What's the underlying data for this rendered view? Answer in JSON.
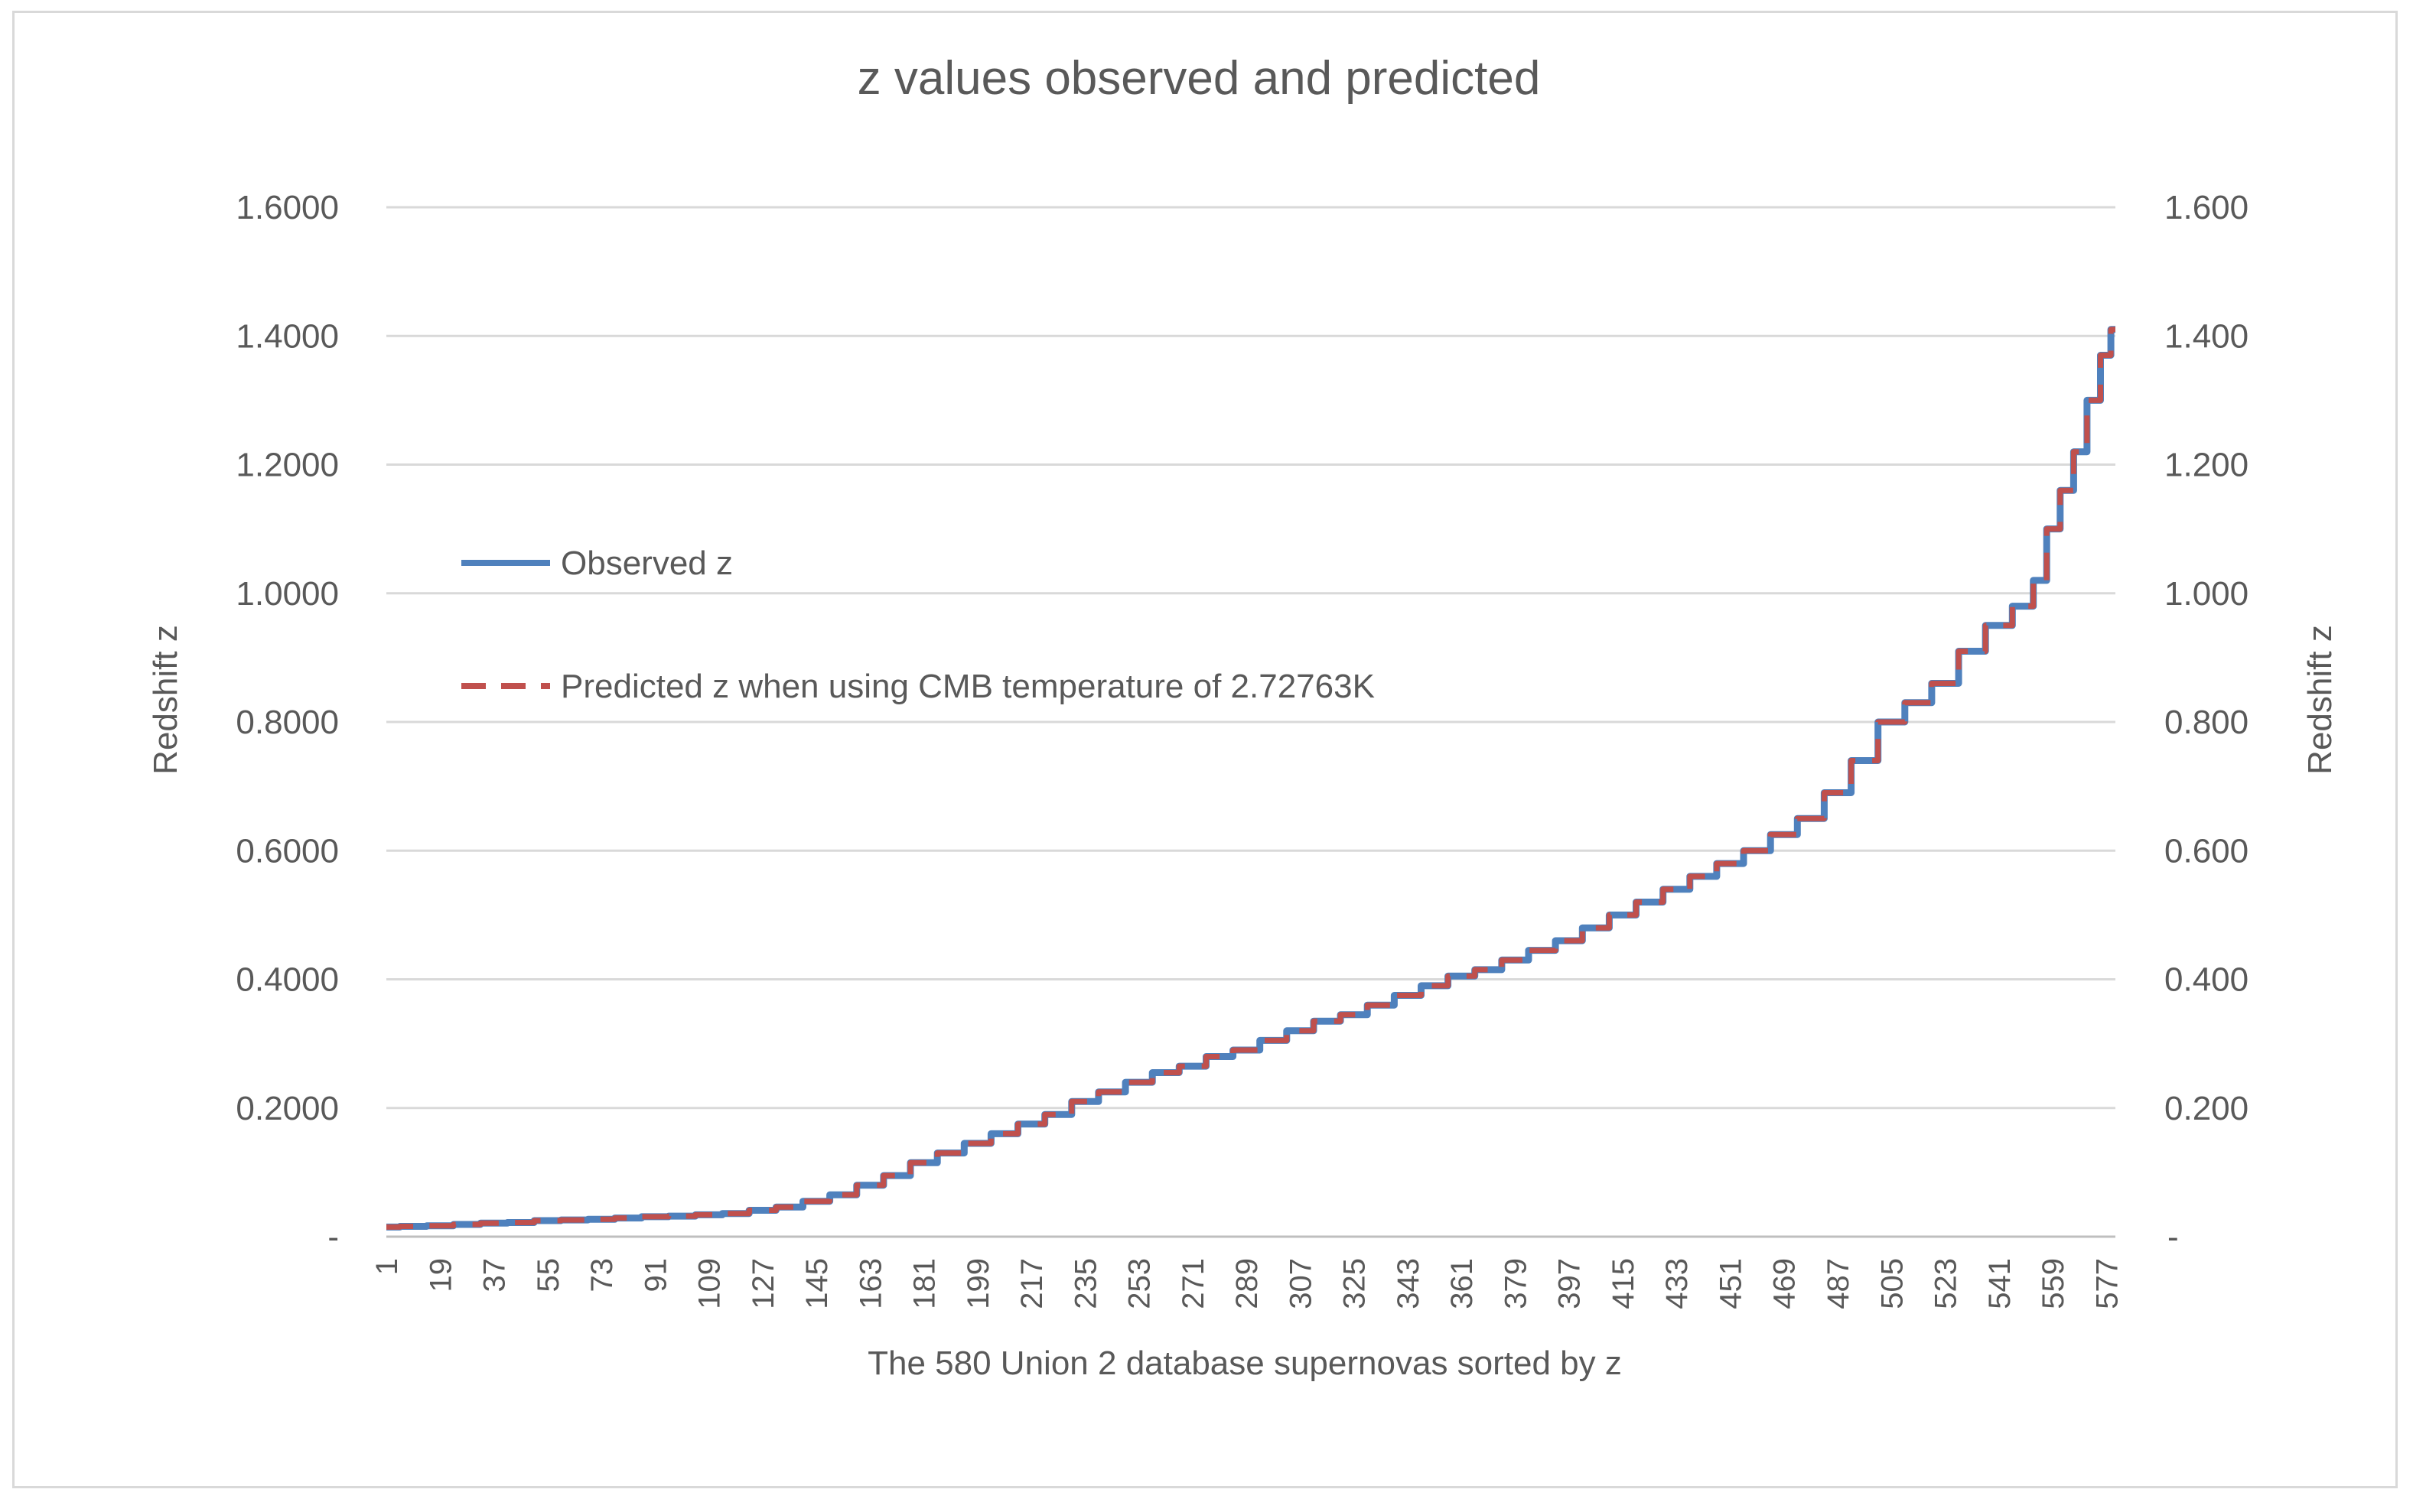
{
  "chart_data": {
    "type": "line",
    "title": "z values observed and  predicted",
    "xlabel": "The 580 Union 2 database supernovas sorted by z",
    "ylabel_left": "Redshift z",
    "ylabel_right": "Redshift z",
    "x_range": [
      1,
      580
    ],
    "ylim": [
      0,
      1.6
    ],
    "grid": "horizontal",
    "legend_position": "left",
    "y_ticks_left": [
      {
        "value": 0,
        "label": "-"
      },
      {
        "value": 0.2,
        "label": "0.2000"
      },
      {
        "value": 0.4,
        "label": "0.4000"
      },
      {
        "value": 0.6,
        "label": "0.6000"
      },
      {
        "value": 0.8,
        "label": "0.8000"
      },
      {
        "value": 1.0,
        "label": "1.0000"
      },
      {
        "value": 1.2,
        "label": "1.2000"
      },
      {
        "value": 1.4,
        "label": "1.4000"
      },
      {
        "value": 1.6,
        "label": "1.6000"
      }
    ],
    "y_ticks_right": [
      {
        "value": 0,
        "label": "-"
      },
      {
        "value": 0.2,
        "label": "0.200"
      },
      {
        "value": 0.4,
        "label": "0.400"
      },
      {
        "value": 0.6,
        "label": "0.600"
      },
      {
        "value": 0.8,
        "label": "0.800"
      },
      {
        "value": 1.0,
        "label": "1.000"
      },
      {
        "value": 1.2,
        "label": "1.200"
      },
      {
        "value": 1.4,
        "label": "1.400"
      },
      {
        "value": 1.6,
        "label": "1.600"
      }
    ],
    "x_tick_labels": [
      "1",
      "19",
      "37",
      "55",
      "73",
      "91",
      "109",
      "127",
      "145",
      "163",
      "181",
      "199",
      "217",
      "235",
      "253",
      "271",
      "289",
      "307",
      "325",
      "343",
      "361",
      "379",
      "397",
      "415",
      "433",
      "451",
      "469",
      "487",
      "505",
      "523",
      "541",
      "559",
      "577"
    ],
    "series": [
      {
        "name": "Observed z",
        "color": "#4f81bd",
        "style": "solid",
        "x": [
          1,
          10,
          19,
          28,
          37,
          46,
          55,
          64,
          73,
          82,
          91,
          100,
          109,
          118,
          127,
          136,
          145,
          154,
          163,
          172,
          181,
          190,
          199,
          208,
          217,
          226,
          235,
          244,
          253,
          262,
          271,
          280,
          289,
          298,
          307,
          316,
          325,
          334,
          343,
          352,
          361,
          370,
          379,
          388,
          397,
          406,
          415,
          424,
          433,
          442,
          451,
          460,
          469,
          478,
          487,
          496,
          505,
          514,
          523,
          532,
          541,
          550,
          555,
          559,
          564,
          568,
          573,
          577,
          580
        ],
        "values": [
          0.015,
          0.016,
          0.017,
          0.019,
          0.021,
          0.022,
          0.025,
          0.026,
          0.027,
          0.029,
          0.031,
          0.032,
          0.034,
          0.036,
          0.041,
          0.046,
          0.055,
          0.065,
          0.08,
          0.095,
          0.115,
          0.13,
          0.145,
          0.16,
          0.175,
          0.19,
          0.21,
          0.225,
          0.24,
          0.255,
          0.265,
          0.28,
          0.29,
          0.305,
          0.32,
          0.335,
          0.345,
          0.36,
          0.375,
          0.39,
          0.405,
          0.415,
          0.43,
          0.445,
          0.46,
          0.48,
          0.5,
          0.52,
          0.54,
          0.56,
          0.58,
          0.6,
          0.625,
          0.65,
          0.69,
          0.74,
          0.8,
          0.83,
          0.86,
          0.91,
          0.95,
          0.98,
          1.02,
          1.1,
          1.16,
          1.22,
          1.3,
          1.37,
          1.41
        ]
      },
      {
        "name": "Predicted z when using CMB temperature of 2.72763K",
        "color": "#c0504d",
        "style": "dashed",
        "x": [
          1,
          10,
          19,
          28,
          37,
          46,
          55,
          64,
          73,
          82,
          91,
          100,
          109,
          118,
          127,
          136,
          145,
          154,
          163,
          172,
          181,
          190,
          199,
          208,
          217,
          226,
          235,
          244,
          253,
          262,
          271,
          280,
          289,
          298,
          307,
          316,
          325,
          334,
          343,
          352,
          361,
          370,
          379,
          388,
          397,
          406,
          415,
          424,
          433,
          442,
          451,
          460,
          469,
          478,
          487,
          496,
          505,
          514,
          523,
          532,
          541,
          550,
          555,
          559,
          564,
          568,
          573,
          577,
          580
        ],
        "values": [
          0.015,
          0.016,
          0.017,
          0.019,
          0.021,
          0.022,
          0.025,
          0.026,
          0.027,
          0.029,
          0.031,
          0.032,
          0.034,
          0.036,
          0.041,
          0.046,
          0.055,
          0.065,
          0.08,
          0.095,
          0.115,
          0.13,
          0.145,
          0.16,
          0.175,
          0.19,
          0.21,
          0.225,
          0.24,
          0.255,
          0.265,
          0.28,
          0.29,
          0.305,
          0.32,
          0.335,
          0.345,
          0.36,
          0.375,
          0.39,
          0.405,
          0.415,
          0.43,
          0.445,
          0.46,
          0.48,
          0.5,
          0.52,
          0.54,
          0.56,
          0.58,
          0.6,
          0.625,
          0.65,
          0.69,
          0.74,
          0.8,
          0.83,
          0.86,
          0.91,
          0.95,
          0.98,
          1.02,
          1.1,
          1.16,
          1.22,
          1.3,
          1.37,
          1.41
        ]
      }
    ]
  }
}
